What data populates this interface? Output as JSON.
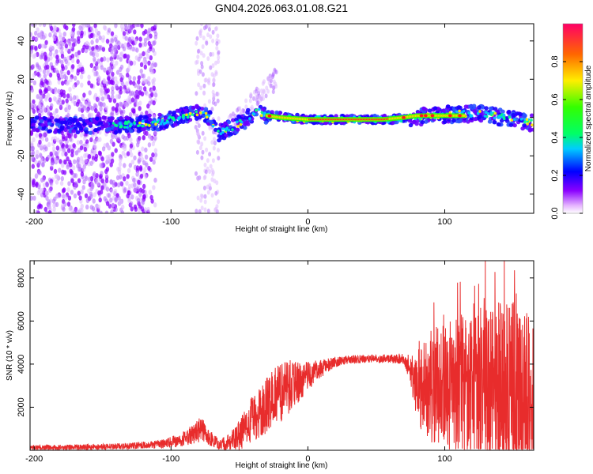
{
  "title": "GN04.2026.063.01.08.G21",
  "chart_data": [
    {
      "type": "heatmap",
      "panel": "spectrogram",
      "xlabel": "Height of straight line (km)",
      "ylabel": "Frequency (Hz)",
      "xlim": [
        -203,
        165
      ],
      "ylim": [
        -50,
        49
      ],
      "x_ticks": [
        -200,
        -100,
        0,
        100
      ],
      "y_ticks": [
        -40,
        -20,
        0,
        20,
        40
      ],
      "colorbar": {
        "label": "Normalized spectral amplitude",
        "range": [
          0,
          1
        ],
        "ticks": [
          0.0,
          0.2,
          0.4,
          0.6,
          0.8
        ],
        "colormap": "rainbow"
      },
      "ridge": {
        "x": [
          -200,
          -180,
          -160,
          -140,
          -120,
          -105,
          -90,
          -80,
          -72,
          -65,
          -55,
          -45,
          -38,
          -32,
          -25,
          -15,
          0,
          20,
          40,
          60,
          75,
          90,
          110,
          130,
          150,
          165
        ],
        "freq": [
          -3,
          -4,
          -4,
          -4,
          -3,
          -2,
          1,
          3,
          0,
          -8,
          -5,
          -1,
          4,
          1,
          1,
          0,
          -1,
          -1,
          -1,
          -1,
          0,
          1,
          2,
          2,
          -1,
          -3
        ]
      },
      "core": {
        "x": [
          -30,
          -20,
          0,
          20,
          40,
          55,
          70,
          80,
          100,
          115
        ],
        "freq": [
          1,
          0,
          -1,
          -1,
          -1,
          -1,
          0,
          1,
          1,
          1
        ]
      }
    },
    {
      "type": "line",
      "panel": "snr",
      "xlabel": "Height of straight line (km)",
      "ylabel": "SNR (10 * v/v)",
      "xlim": [
        -203,
        165
      ],
      "ylim": [
        0,
        8800
      ],
      "x_ticks": [
        -200,
        -100,
        0,
        100
      ],
      "y_ticks": [
        2000,
        4000,
        6000,
        8000
      ],
      "color": "#e82c2c",
      "envelope": {
        "x": [
          -203,
          -160,
          -130,
          -110,
          -95,
          -85,
          -78,
          -72,
          -65,
          -58,
          -50,
          -40,
          -30,
          -20,
          -12,
          -5,
          0,
          10,
          20,
          30,
          45,
          60,
          70,
          74,
          78,
          82,
          90,
          100,
          110,
          120,
          130,
          140,
          150,
          160,
          165
        ],
        "base": [
          120,
          150,
          200,
          260,
          450,
          700,
          1000,
          600,
          250,
          350,
          700,
          1500,
          2100,
          2700,
          3000,
          3250,
          3450,
          3800,
          4100,
          4200,
          4250,
          4250,
          4250,
          3900,
          3300,
          3000,
          2900,
          2900,
          2900,
          2800,
          2800,
          2700,
          2400,
          2200,
          2100
        ],
        "spread": [
          120,
          130,
          150,
          180,
          300,
          450,
          600,
          400,
          250,
          400,
          700,
          1100,
          1300,
          1400,
          1200,
          900,
          700,
          400,
          250,
          200,
          200,
          200,
          250,
          600,
          1300,
          2000,
          2600,
          3000,
          3300,
          3700,
          4200,
          4600,
          4500,
          4200,
          4000
        ]
      }
    }
  ]
}
